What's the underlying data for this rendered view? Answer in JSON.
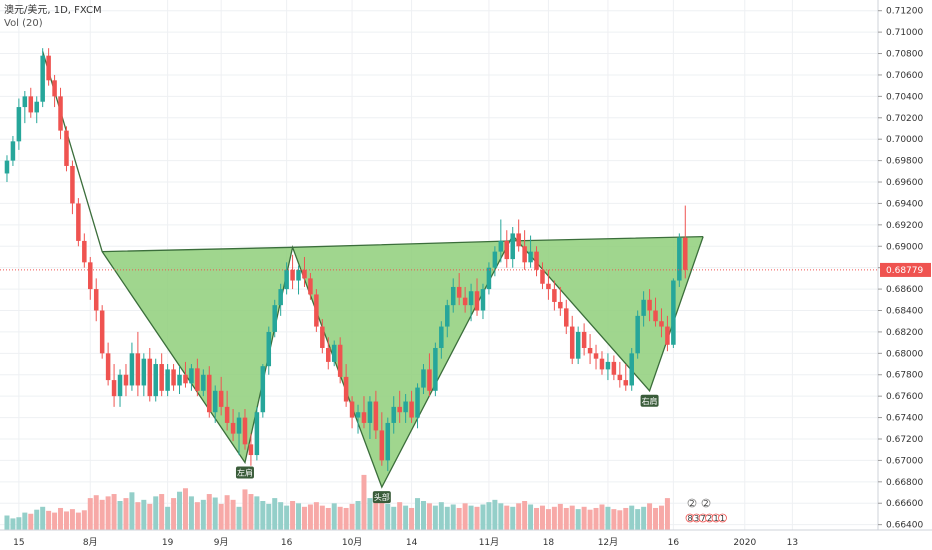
{
  "header": {
    "symbol": "澳元/美元, 1D, FXCM",
    "indicator": "Vol (20)"
  },
  "colors": {
    "up": "#26a69a",
    "down": "#ef5350",
    "up_volume": "#94cfc9",
    "down_volume": "#f7a9a7",
    "pattern_fill": "#8fcf7a",
    "pattern_line": "#3b6e3b",
    "price_line": "#ef5350",
    "grid": "#eef0f3",
    "label_bg": "#3a5c3a"
  },
  "chart_data": {
    "type": "candlestick",
    "title": "澳元/美元, 1D, FXCM",
    "y_axis": {
      "ticks": [
        "0.71200",
        "0.71000",
        "0.70800",
        "0.70600",
        "0.70400",
        "0.70200",
        "0.70000",
        "0.69800",
        "0.69600",
        "0.69400",
        "0.69200",
        "0.69000",
        "0.68800",
        "0.68600",
        "0.68400",
        "0.68200",
        "0.68000",
        "0.67800",
        "0.67600",
        "0.67400",
        "0.67200",
        "0.67000",
        "0.66800",
        "0.66600",
        "0.66400"
      ],
      "range": [
        0.6635,
        0.713
      ]
    },
    "x_axis": {
      "labels": [
        {
          "text": "15",
          "bar": 2
        },
        {
          "text": "8月",
          "bar": 14
        },
        {
          "text": "19",
          "bar": 27
        },
        {
          "text": "9月",
          "bar": 36
        },
        {
          "text": "16",
          "bar": 47
        },
        {
          "text": "10月",
          "bar": 58
        },
        {
          "text": "14",
          "bar": 68
        },
        {
          "text": "11月",
          "bar": 81
        },
        {
          "text": "18",
          "bar": 91
        },
        {
          "text": "12月",
          "bar": 101
        },
        {
          "text": "16",
          "bar": 112
        },
        {
          "text": "2020",
          "bar": 124
        },
        {
          "text": "13",
          "bar": 132
        }
      ],
      "bars_visible": 148
    },
    "last_price": "0.68779",
    "last_price_value": 0.68779,
    "candles": [
      [
        0.6968,
        0.6985,
        0.696,
        0.698
      ],
      [
        0.698,
        0.7003,
        0.6975,
        0.6998
      ],
      [
        0.6998,
        0.7038,
        0.699,
        0.703
      ],
      [
        0.703,
        0.7045,
        0.7015,
        0.704
      ],
      [
        0.704,
        0.7048,
        0.702,
        0.7025
      ],
      [
        0.7025,
        0.704,
        0.7015,
        0.7035
      ],
      [
        0.7035,
        0.7085,
        0.703,
        0.7078
      ],
      [
        0.7078,
        0.7085,
        0.705,
        0.7055
      ],
      [
        0.7055,
        0.706,
        0.703,
        0.704
      ],
      [
        0.704,
        0.7048,
        0.7,
        0.7008
      ],
      [
        0.7008,
        0.7012,
        0.697,
        0.6975
      ],
      [
        0.6975,
        0.698,
        0.693,
        0.694
      ],
      [
        0.694,
        0.6945,
        0.69,
        0.6905
      ],
      [
        0.6905,
        0.6912,
        0.688,
        0.6885
      ],
      [
        0.6885,
        0.689,
        0.685,
        0.686
      ],
      [
        0.686,
        0.687,
        0.683,
        0.684
      ],
      [
        0.684,
        0.6845,
        0.6795,
        0.68
      ],
      [
        0.68,
        0.681,
        0.677,
        0.6775
      ],
      [
        0.6775,
        0.679,
        0.675,
        0.676
      ],
      [
        0.676,
        0.6785,
        0.675,
        0.678
      ],
      [
        0.678,
        0.679,
        0.676,
        0.677
      ],
      [
        0.677,
        0.681,
        0.6765,
        0.68
      ],
      [
        0.68,
        0.682,
        0.676,
        0.677
      ],
      [
        0.677,
        0.68,
        0.676,
        0.6795
      ],
      [
        0.6795,
        0.6805,
        0.6755,
        0.676
      ],
      [
        0.676,
        0.6795,
        0.6755,
        0.679
      ],
      [
        0.679,
        0.68,
        0.676,
        0.6765
      ],
      [
        0.6765,
        0.679,
        0.676,
        0.6785
      ],
      [
        0.6785,
        0.679,
        0.6765,
        0.677
      ],
      [
        0.677,
        0.6788,
        0.6762,
        0.678
      ],
      [
        0.678,
        0.6792,
        0.6768,
        0.6772
      ],
      [
        0.6772,
        0.679,
        0.6765,
        0.6786
      ],
      [
        0.6786,
        0.6795,
        0.676,
        0.6765
      ],
      [
        0.6765,
        0.6785,
        0.676,
        0.678
      ],
      [
        0.678,
        0.6788,
        0.674,
        0.6745
      ],
      [
        0.6745,
        0.677,
        0.6735,
        0.6765
      ],
      [
        0.6765,
        0.6778,
        0.6742,
        0.675
      ],
      [
        0.675,
        0.6765,
        0.6728,
        0.6735
      ],
      [
        0.6735,
        0.6748,
        0.6718,
        0.6725
      ],
      [
        0.6725,
        0.6745,
        0.6705,
        0.674
      ],
      [
        0.674,
        0.6748,
        0.671,
        0.6715
      ],
      [
        0.6715,
        0.6725,
        0.6695,
        0.6705
      ],
      [
        0.6705,
        0.675,
        0.67,
        0.6745
      ],
      [
        0.6745,
        0.679,
        0.674,
        0.6788
      ],
      [
        0.6788,
        0.6825,
        0.678,
        0.682
      ],
      [
        0.682,
        0.685,
        0.6815,
        0.6845
      ],
      [
        0.6845,
        0.6865,
        0.6835,
        0.686
      ],
      [
        0.686,
        0.6885,
        0.6855,
        0.6878
      ],
      [
        0.6878,
        0.6892,
        0.686,
        0.6868
      ],
      [
        0.6868,
        0.6882,
        0.6855,
        0.6878
      ],
      [
        0.6878,
        0.689,
        0.6862,
        0.687
      ],
      [
        0.687,
        0.6875,
        0.685,
        0.6855
      ],
      [
        0.6855,
        0.686,
        0.682,
        0.6825
      ],
      [
        0.6825,
        0.6832,
        0.68,
        0.6805
      ],
      [
        0.6805,
        0.6815,
        0.6785,
        0.6792
      ],
      [
        0.6792,
        0.6812,
        0.6788,
        0.6808
      ],
      [
        0.6808,
        0.6815,
        0.6772,
        0.6778
      ],
      [
        0.6778,
        0.679,
        0.675,
        0.6755
      ],
      [
        0.6755,
        0.676,
        0.673,
        0.674
      ],
      [
        0.674,
        0.6752,
        0.6725,
        0.6745
      ],
      [
        0.6745,
        0.676,
        0.673,
        0.6735
      ],
      [
        0.6735,
        0.676,
        0.672,
        0.6755
      ],
      [
        0.6755,
        0.6765,
        0.672,
        0.6728
      ],
      [
        0.6728,
        0.6745,
        0.6695,
        0.67
      ],
      [
        0.67,
        0.674,
        0.669,
        0.6735
      ],
      [
        0.6735,
        0.676,
        0.6725,
        0.675
      ],
      [
        0.675,
        0.6765,
        0.6735,
        0.6745
      ],
      [
        0.6745,
        0.6762,
        0.6735,
        0.6755
      ],
      [
        0.6755,
        0.6765,
        0.6735,
        0.674
      ],
      [
        0.674,
        0.6772,
        0.673,
        0.6768
      ],
      [
        0.6768,
        0.679,
        0.6762,
        0.6785
      ],
      [
        0.6785,
        0.68,
        0.676,
        0.6765
      ],
      [
        0.6765,
        0.681,
        0.676,
        0.6805
      ],
      [
        0.6805,
        0.683,
        0.6795,
        0.6825
      ],
      [
        0.6825,
        0.685,
        0.6815,
        0.6845
      ],
      [
        0.6845,
        0.687,
        0.6838,
        0.6862
      ],
      [
        0.6862,
        0.6875,
        0.6845,
        0.6852
      ],
      [
        0.6852,
        0.6862,
        0.6838,
        0.6845
      ],
      [
        0.6845,
        0.6865,
        0.683,
        0.6858
      ],
      [
        0.6858,
        0.687,
        0.6835,
        0.684
      ],
      [
        0.684,
        0.6865,
        0.6832,
        0.686
      ],
      [
        0.686,
        0.6885,
        0.6855,
        0.688
      ],
      [
        0.688,
        0.69,
        0.6872,
        0.6895
      ],
      [
        0.6895,
        0.6925,
        0.6885,
        0.6905
      ],
      [
        0.6905,
        0.6915,
        0.688,
        0.6888
      ],
      [
        0.6888,
        0.6918,
        0.688,
        0.6912
      ],
      [
        0.6912,
        0.6925,
        0.6895,
        0.69
      ],
      [
        0.69,
        0.6915,
        0.6878,
        0.6885
      ],
      [
        0.6885,
        0.691,
        0.688,
        0.6895
      ],
      [
        0.6895,
        0.69,
        0.6872,
        0.6878
      ],
      [
        0.6878,
        0.6885,
        0.686,
        0.6865
      ],
      [
        0.6865,
        0.6878,
        0.685,
        0.686
      ],
      [
        0.686,
        0.6868,
        0.684,
        0.6848
      ],
      [
        0.6848,
        0.6862,
        0.6835,
        0.6842
      ],
      [
        0.6842,
        0.685,
        0.6818,
        0.6825
      ],
      [
        0.6825,
        0.6835,
        0.679,
        0.6795
      ],
      [
        0.6795,
        0.6825,
        0.679,
        0.682
      ],
      [
        0.682,
        0.6828,
        0.6798,
        0.6805
      ],
      [
        0.6805,
        0.6818,
        0.679,
        0.68
      ],
      [
        0.68,
        0.6808,
        0.6785,
        0.6795
      ],
      [
        0.6795,
        0.6802,
        0.678,
        0.6785
      ],
      [
        0.6785,
        0.68,
        0.6775,
        0.6792
      ],
      [
        0.6792,
        0.6798,
        0.6775,
        0.678
      ],
      [
        0.678,
        0.6792,
        0.6768,
        0.6775
      ],
      [
        0.6775,
        0.679,
        0.6765,
        0.677
      ],
      [
        0.677,
        0.6805,
        0.6765,
        0.68
      ],
      [
        0.68,
        0.684,
        0.6795,
        0.6835
      ],
      [
        0.6835,
        0.6858,
        0.6825,
        0.685
      ],
      [
        0.685,
        0.686,
        0.683,
        0.684
      ],
      [
        0.684,
        0.6852,
        0.6825,
        0.683
      ],
      [
        0.683,
        0.6842,
        0.6815,
        0.6825
      ],
      [
        0.6825,
        0.6835,
        0.6802,
        0.6808
      ],
      [
        0.6808,
        0.687,
        0.6805,
        0.6868
      ],
      [
        0.6868,
        0.6912,
        0.6862,
        0.6908
      ],
      [
        0.6908,
        0.6938,
        0.687,
        0.6878
      ]
    ],
    "volumes_relative": [
      0.25,
      0.2,
      0.22,
      0.3,
      0.28,
      0.35,
      0.4,
      0.33,
      0.3,
      0.38,
      0.32,
      0.36,
      0.3,
      0.34,
      0.55,
      0.6,
      0.52,
      0.58,
      0.62,
      0.5,
      0.55,
      0.65,
      0.48,
      0.52,
      0.45,
      0.58,
      0.62,
      0.4,
      0.55,
      0.66,
      0.72,
      0.58,
      0.48,
      0.52,
      0.62,
      0.56,
      0.45,
      0.6,
      0.52,
      0.4,
      0.7,
      0.62,
      0.58,
      0.5,
      0.45,
      0.55,
      0.48,
      0.42,
      0.5,
      0.46,
      0.4,
      0.44,
      0.48,
      0.42,
      0.38,
      0.46,
      0.4,
      0.38,
      0.45,
      0.5,
      0.95,
      0.55,
      0.48,
      0.52,
      0.45,
      0.4,
      0.48,
      0.42,
      0.38,
      0.55,
      0.5,
      0.46,
      0.42,
      0.48,
      0.4,
      0.44,
      0.38,
      0.46,
      0.42,
      0.4,
      0.44,
      0.48,
      0.52,
      0.46,
      0.42,
      0.4,
      0.46,
      0.5,
      0.44,
      0.38,
      0.42,
      0.36,
      0.4,
      0.45,
      0.38,
      0.42,
      0.36,
      0.4,
      0.35,
      0.38,
      0.44,
      0.4,
      0.36,
      0.34,
      0.38,
      0.42,
      0.36,
      0.4,
      0.46,
      0.38,
      0.42,
      0.55
    ],
    "pattern": {
      "name": "inverse head and shoulders",
      "zigzag": [
        {
          "bar": 6,
          "price": 0.7082
        },
        {
          "bar": 16,
          "price": 0.6895
        },
        {
          "bar": 40,
          "price": 0.6698
        },
        {
          "bar": 48,
          "price": 0.6899
        },
        {
          "bar": 63,
          "price": 0.6675
        },
        {
          "bar": 85,
          "price": 0.691
        },
        {
          "bar": 108,
          "price": 0.6765
        },
        {
          "bar": 117,
          "price": 0.6909
        }
      ],
      "neckline": [
        {
          "bar": 16,
          "price": 0.6895
        },
        {
          "bar": 48,
          "price": 0.6899
        },
        {
          "bar": 85,
          "price": 0.6905
        },
        {
          "bar": 117,
          "price": 0.6909
        }
      ],
      "labels": [
        {
          "text": "左肩",
          "bar": 40,
          "price": 0.6698
        },
        {
          "text": "头部",
          "bar": 63,
          "price": 0.6675
        },
        {
          "text": "右肩",
          "bar": 108,
          "price": 0.6765
        }
      ]
    },
    "events_markers": {
      "top_row": [
        "2",
        "2"
      ],
      "bottom_row": [
        "8",
        "3",
        "7",
        "2",
        "1",
        "1"
      ]
    }
  }
}
